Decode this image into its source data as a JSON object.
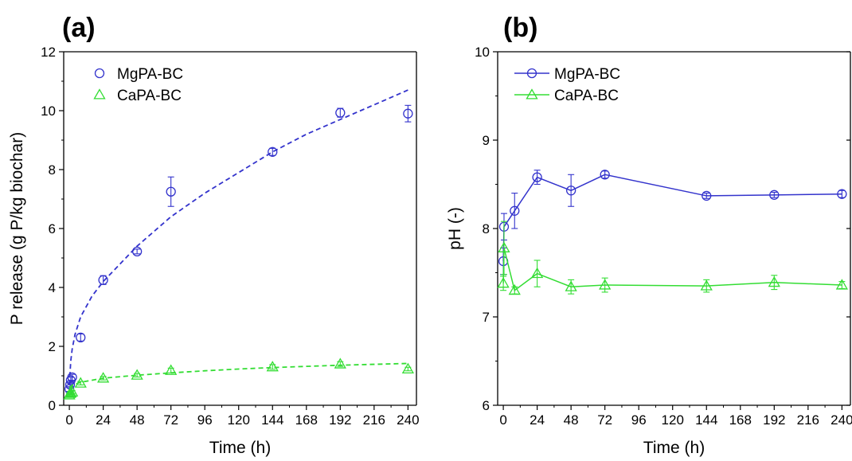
{
  "chart_data": [
    {
      "panel": "(a)",
      "type": "scatter",
      "title": "",
      "xlabel": "Time (h)",
      "ylabel": "P release (g P/kg biochar)",
      "xlim": [
        -4,
        246
      ],
      "ylim": [
        0,
        12
      ],
      "xticks": [
        0,
        24,
        48,
        72,
        96,
        120,
        144,
        168,
        192,
        216,
        240
      ],
      "yticks": [
        0,
        2,
        4,
        6,
        8,
        10,
        12
      ],
      "grid": false,
      "legend_position": "top-left",
      "series": [
        {
          "name": "MgPA-BC",
          "color": "#3333cc",
          "marker": "circle",
          "x": [
            0,
            0.5,
            1,
            2,
            8,
            24,
            48,
            72,
            144,
            192,
            240
          ],
          "y": [
            0.55,
            0.7,
            0.85,
            0.95,
            2.3,
            4.25,
            5.22,
            7.25,
            8.6,
            9.93,
            9.9
          ],
          "err": [
            0.08,
            0.08,
            0.1,
            0.1,
            0.12,
            0.15,
            0.08,
            0.5,
            0.12,
            0.15,
            0.28
          ],
          "fit": {
            "style": "dashed",
            "x": [
              0,
              1,
              2,
              4,
              8,
              16,
              24,
              48,
              72,
              96,
              120,
              144,
              168,
              192,
              216,
              240
            ],
            "y": [
              0.7,
              1.5,
              1.9,
              2.4,
              3.0,
              3.7,
              4.2,
              5.4,
              6.4,
              7.2,
              7.9,
              8.6,
              9.2,
              9.7,
              10.2,
              10.7
            ]
          }
        },
        {
          "name": "CaPA-BC",
          "color": "#33dd33",
          "marker": "triangle",
          "x": [
            0,
            0.5,
            1,
            2,
            8,
            24,
            48,
            72,
            144,
            192,
            240
          ],
          "y": [
            0.35,
            0.4,
            0.42,
            0.45,
            0.75,
            0.92,
            1.02,
            1.18,
            1.3,
            1.4,
            1.23
          ],
          "err": [
            0.05,
            0.05,
            0.05,
            0.05,
            0.06,
            0.06,
            0.06,
            0.08,
            0.08,
            0.08,
            0.06
          ],
          "fit": {
            "style": "dashed",
            "x": [
              0,
              2,
              8,
              24,
              48,
              72,
              96,
              120,
              144,
              168,
              192,
              216,
              240
            ],
            "y": [
              0.6,
              0.68,
              0.78,
              0.92,
              1.02,
              1.1,
              1.17,
              1.23,
              1.28,
              1.32,
              1.36,
              1.39,
              1.42
            ]
          }
        }
      ]
    },
    {
      "panel": "(b)",
      "type": "line",
      "title": "",
      "xlabel": "Time (h)",
      "ylabel": "pH (-)",
      "xlim": [
        -4,
        246
      ],
      "ylim": [
        6,
        10
      ],
      "xticks": [
        0,
        24,
        48,
        72,
        96,
        120,
        144,
        168,
        192,
        216,
        240
      ],
      "yticks": [
        6,
        7,
        8,
        9,
        10
      ],
      "grid": false,
      "legend_position": "top-left",
      "series": [
        {
          "name": "MgPA-BC",
          "color": "#3333cc",
          "marker": "circle",
          "x": [
            0,
            0.5,
            8,
            24,
            48,
            72,
            144,
            192,
            240
          ],
          "y": [
            7.63,
            8.02,
            8.2,
            8.58,
            8.43,
            8.61,
            8.37,
            8.38,
            8.39
          ],
          "err": [
            0.15,
            0.15,
            0.2,
            0.08,
            0.18,
            0.04,
            0.03,
            0.03,
            0.04
          ]
        },
        {
          "name": "CaPA-BC",
          "color": "#33dd33",
          "marker": "triangle",
          "x": [
            0,
            0.5,
            8,
            24,
            48,
            72,
            144,
            192,
            240
          ],
          "y": [
            7.38,
            7.78,
            7.3,
            7.49,
            7.34,
            7.36,
            7.35,
            7.39,
            7.36
          ],
          "err": [
            0.08,
            0.3,
            0.04,
            0.15,
            0.08,
            0.08,
            0.07,
            0.08,
            0.04
          ]
        }
      ]
    }
  ]
}
